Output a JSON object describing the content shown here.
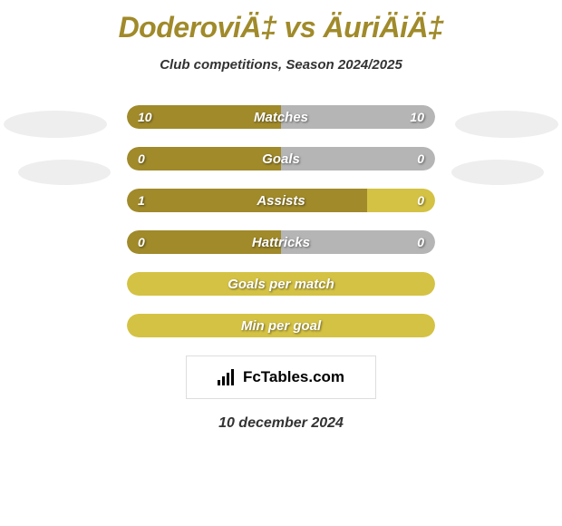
{
  "header": {
    "title": "DoderoviÄ‡ vs ÄuriÄiÄ‡",
    "subtitle": "Club competitions, Season 2024/2025"
  },
  "colors": {
    "olive": "#a08a2a",
    "gold": "#d4c244",
    "grey": "#b5b5b5",
    "ellipse": "#eeeeee"
  },
  "stats": [
    {
      "label": "Matches",
      "left_value": "10",
      "right_value": "10",
      "left_width_pct": 50,
      "right_width_pct": 50,
      "left_color": "#a08a2a",
      "right_color": "#b5b5b5",
      "show_values": true
    },
    {
      "label": "Goals",
      "left_value": "0",
      "right_value": "0",
      "left_width_pct": 50,
      "right_width_pct": 50,
      "left_color": "#a08a2a",
      "right_color": "#b5b5b5",
      "show_values": true
    },
    {
      "label": "Assists",
      "left_value": "1",
      "right_value": "0",
      "left_width_pct": 78,
      "right_width_pct": 22,
      "left_color": "#a08a2a",
      "right_color": "#d4c244",
      "show_values": true
    },
    {
      "label": "Hattricks",
      "left_value": "0",
      "right_value": "0",
      "left_width_pct": 50,
      "right_width_pct": 50,
      "left_color": "#a08a2a",
      "right_color": "#b5b5b5",
      "show_values": true
    },
    {
      "label": "Goals per match",
      "left_value": "",
      "right_value": "",
      "full_color": "#d4c244",
      "show_values": false,
      "full": true
    },
    {
      "label": "Min per goal",
      "left_value": "",
      "right_value": "",
      "full_color": "#d4c244",
      "show_values": false,
      "full": true
    }
  ],
  "logo": {
    "text": "FcTables.com"
  },
  "date": "10 december 2024"
}
